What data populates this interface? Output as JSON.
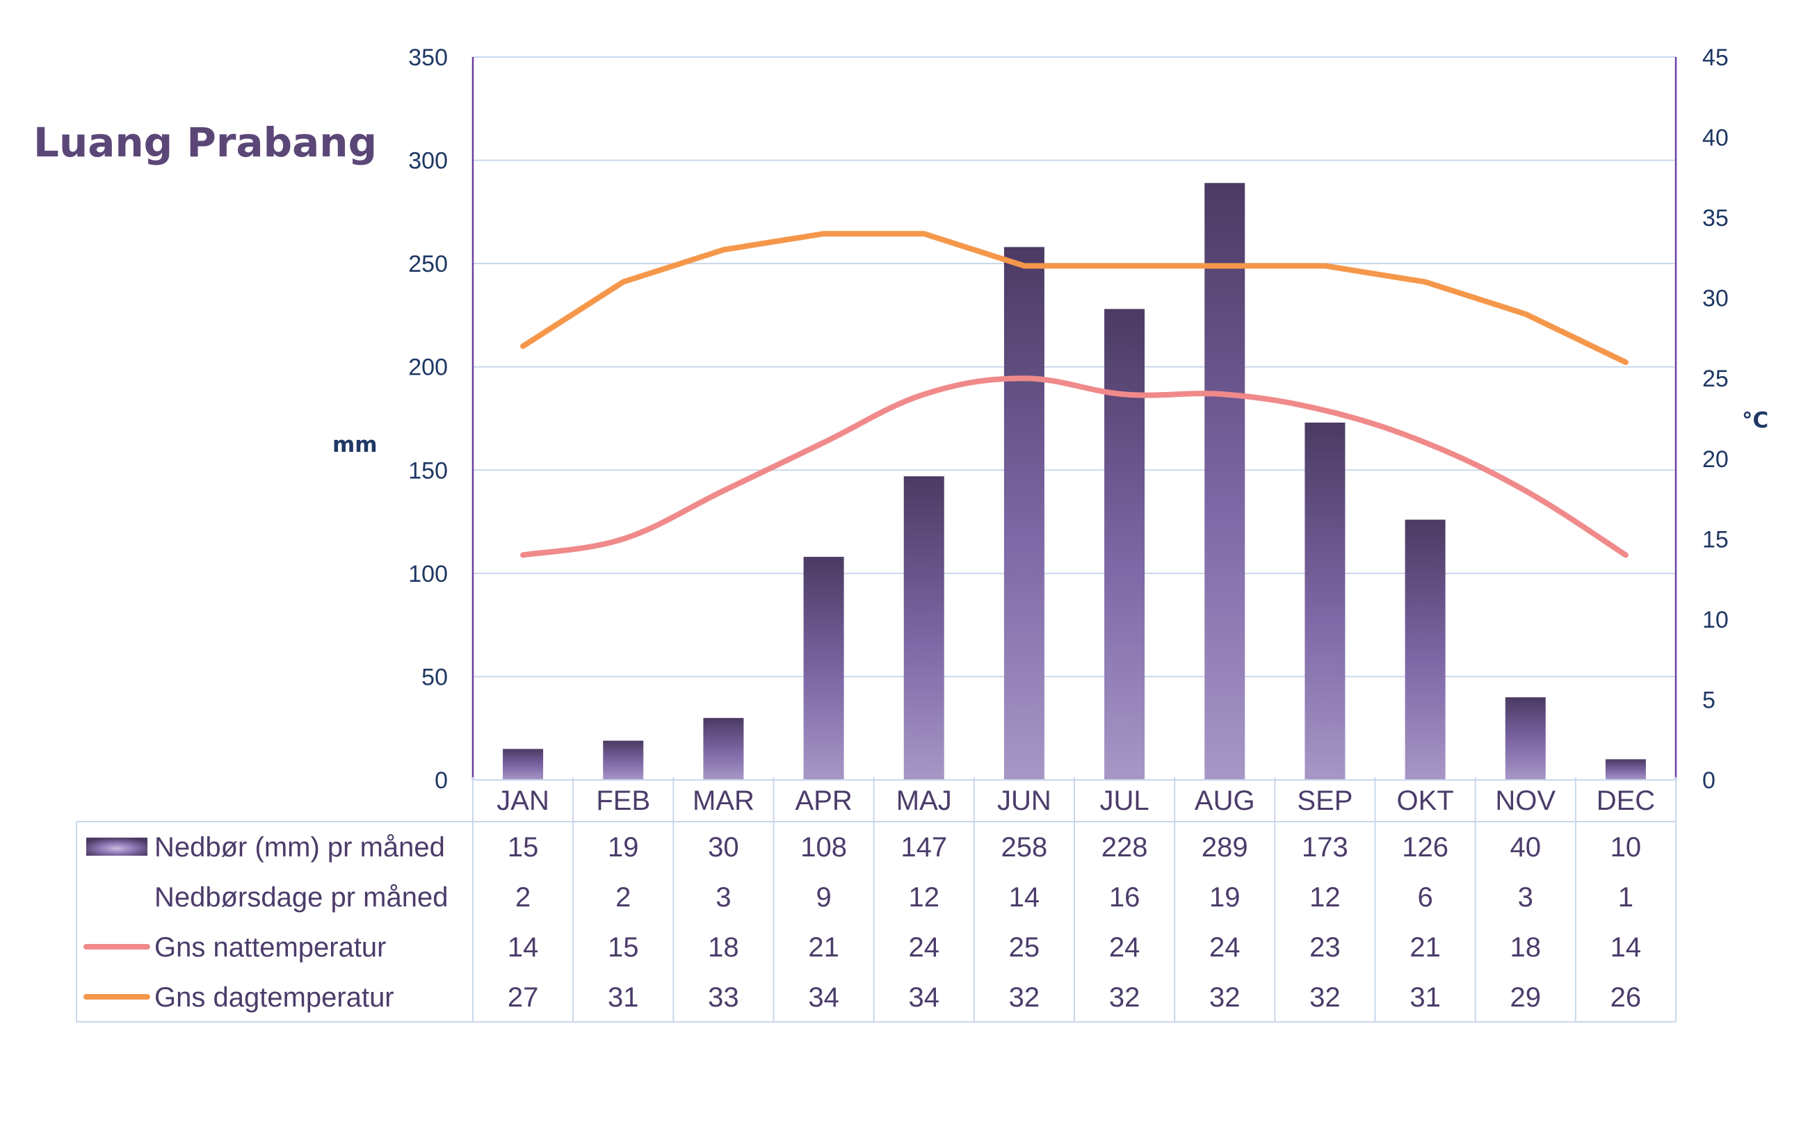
{
  "title": "Luang Prabang",
  "chart_data": {
    "type": "bar",
    "categories": [
      "JAN",
      "FEB",
      "MAR",
      "APR",
      "MAJ",
      "JUN",
      "JUL",
      "AUG",
      "SEP",
      "OKT",
      "NOV",
      "DEC"
    ],
    "left_axis": {
      "label": "mm",
      "range": [
        0,
        350
      ],
      "ticks": [
        0,
        50,
        100,
        150,
        200,
        250,
        300,
        350
      ]
    },
    "right_axis": {
      "label": "°C",
      "range": [
        0,
        45
      ],
      "ticks": [
        0,
        5,
        10,
        15,
        20,
        25,
        30,
        35,
        40,
        45
      ]
    },
    "grid": true,
    "series": [
      {
        "name": "Nedbør (mm) pr måned",
        "kind": "bar",
        "axis": "left",
        "color": "#5b4777",
        "values": [
          15,
          19,
          30,
          108,
          147,
          258,
          228,
          289,
          173,
          126,
          40,
          10
        ]
      },
      {
        "name": "Nedbørsdage pr måned",
        "kind": "table-only",
        "values": [
          2,
          2,
          3,
          9,
          12,
          14,
          16,
          19,
          12,
          6,
          3,
          1
        ]
      },
      {
        "name": "Gns nattemperatur",
        "kind": "line",
        "axis": "right",
        "color": "#f08a8a",
        "values": [
          14,
          15,
          18,
          21,
          24,
          25,
          24,
          24,
          23,
          21,
          18,
          14
        ]
      },
      {
        "name": "Gns dagtemperatur",
        "kind": "line",
        "axis": "right",
        "color": "#f5974a",
        "values": [
          27,
          31,
          33,
          34,
          34,
          32,
          32,
          32,
          32,
          31,
          29,
          26
        ]
      }
    ]
  }
}
